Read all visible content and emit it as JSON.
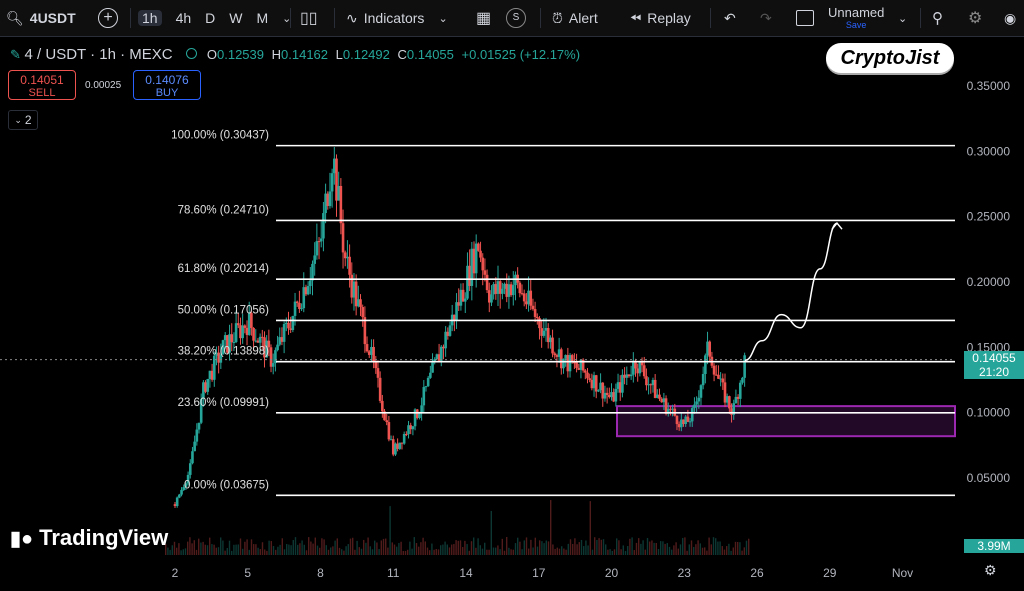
{
  "toolbar": {
    "symbol": "4USDT",
    "intervals": [
      "1h",
      "4h",
      "D",
      "W",
      "M"
    ],
    "active_interval": "1h",
    "indicators_label": "Indicators",
    "s_label": "S",
    "alert_label": "Alert",
    "replay_label": "Replay",
    "layout_name": "Unnamed",
    "layout_save": "Save"
  },
  "legend": {
    "title": "4 / USDT · 1h · MEXC",
    "o_label": "O",
    "o_val": "0.12539",
    "h_label": "H",
    "h_val": "0.14162",
    "l_label": "L",
    "l_val": "0.12492",
    "c_label": "C",
    "c_val": "0.14055",
    "change": "+0.01525 (+12.17%)"
  },
  "trade": {
    "sell_price": "0.14051",
    "sell_label": "SELL",
    "spread": "0.00025",
    "buy_price": "0.14076",
    "buy_label": "BUY"
  },
  "collapse_count": "2",
  "brand": "CryptoJist",
  "tradingview": "TradingView",
  "price_badge": {
    "price": "0.14055",
    "countdown": "21:20"
  },
  "volume_badge": "3.99M",
  "colors": {
    "up": "#26a69a",
    "down": "#ef5350",
    "zone": "#9c27b0",
    "fib": "#ffffff"
  },
  "chart_data": {
    "type": "candlestick",
    "y_ticks": [
      "0.35000",
      "0.30000",
      "0.25000",
      "0.20000",
      "0.15000",
      "0.10000",
      "0.05000"
    ],
    "y_tick_values": [
      0.35,
      0.3,
      0.25,
      0.2,
      0.15,
      0.1,
      0.05
    ],
    "x_ticks": [
      "2",
      "5",
      "8",
      "11",
      "14",
      "17",
      "20",
      "23",
      "26",
      "29",
      "Nov"
    ],
    "fib_levels": [
      {
        "label": "100.00% (0.30437)",
        "value": 0.30437
      },
      {
        "label": "78.60% (0.24710)",
        "value": 0.2471
      },
      {
        "label": "61.80% (0.20214)",
        "value": 0.20214
      },
      {
        "label": "50.00% (0.17056)",
        "value": 0.17056
      },
      {
        "label": "38.20% (0.13898)",
        "value": 0.13898
      },
      {
        "label": "23.60% (0.09991)",
        "value": 0.09991
      },
      {
        "label": "0.00% (0.03675)",
        "value": 0.03675
      }
    ],
    "zone": {
      "low": 0.082,
      "high": 0.105
    },
    "price_path": [
      [
        2,
        0.03
      ],
      [
        2.6,
        0.055
      ],
      [
        3.2,
        0.12
      ],
      [
        4,
        0.15
      ],
      [
        5,
        0.17
      ],
      [
        6,
        0.14
      ],
      [
        7,
        0.18
      ],
      [
        8,
        0.23
      ],
      [
        8.5,
        0.3
      ],
      [
        9,
        0.22
      ],
      [
        10,
        0.15
      ],
      [
        11,
        0.07
      ],
      [
        12,
        0.1
      ],
      [
        13,
        0.15
      ],
      [
        14,
        0.2
      ],
      [
        14.5,
        0.23
      ],
      [
        15,
        0.19
      ],
      [
        16,
        0.2
      ],
      [
        17,
        0.17
      ],
      [
        18,
        0.14
      ],
      [
        19,
        0.13
      ],
      [
        20,
        0.11
      ],
      [
        21,
        0.14
      ],
      [
        22,
        0.11
      ],
      [
        23,
        0.09
      ],
      [
        23.4,
        0.1
      ],
      [
        24,
        0.15
      ],
      [
        24.5,
        0.12
      ],
      [
        25,
        0.1
      ],
      [
        25.5,
        0.14
      ]
    ],
    "projection_path": [
      [
        25.5,
        0.14
      ],
      [
        26.2,
        0.155
      ],
      [
        27,
        0.175
      ],
      [
        27.8,
        0.165
      ],
      [
        28.6,
        0.21
      ],
      [
        29.3,
        0.245
      ]
    ]
  }
}
